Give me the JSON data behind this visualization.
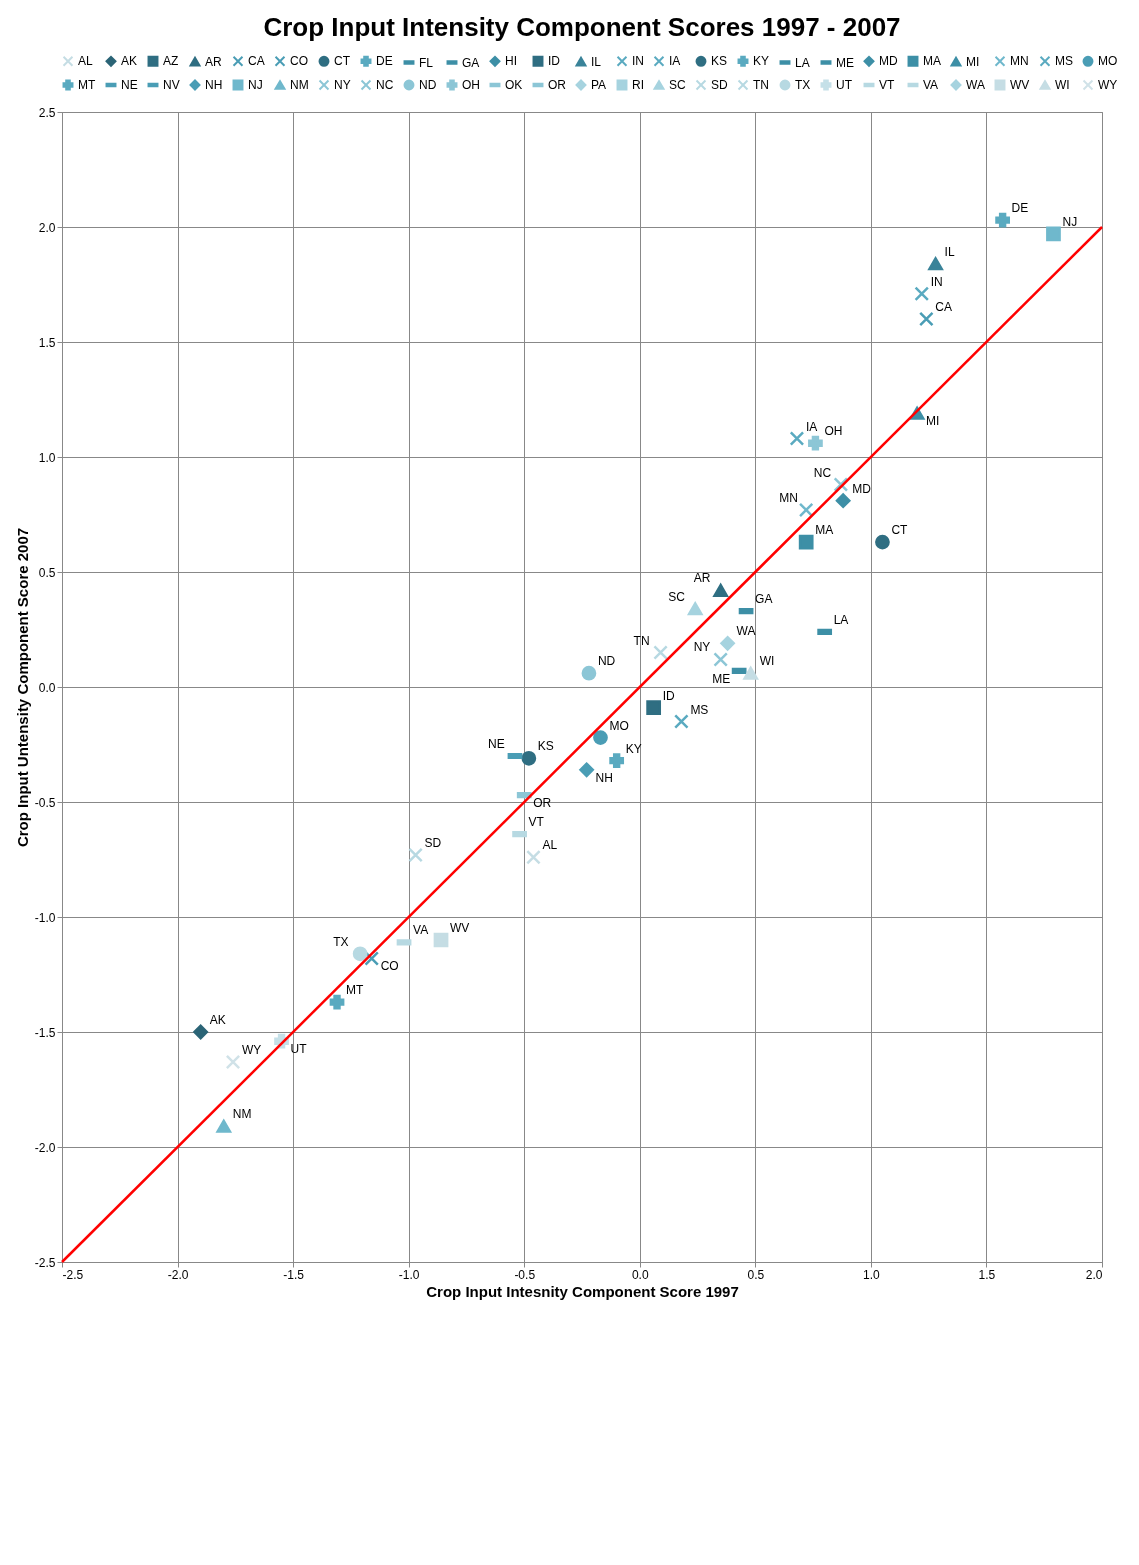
{
  "chart_data": {
    "type": "scatter",
    "title": "Crop Input Intensity Component Scores 1997 - 2007",
    "xlabel": "Crop Input Intesnity Component Score 1997",
    "ylabel": "Crop Input Untensity Component Score 2007",
    "xlim": [
      -2.5,
      2.0
    ],
    "xticks": [
      -2.5,
      {
        "value": -2,
        "label": "-2.0"
      },
      -1.5,
      {
        "value": -1,
        "label": "-1.0"
      },
      -0.5,
      {
        "value": 0,
        "label": "0.0"
      },
      0.5,
      {
        "value": 1,
        "label": "1.0"
      },
      1.5,
      {
        "value": 2,
        "label": "2.0"
      }
    ],
    "ylim": [
      -2.5,
      2.5
    ],
    "yticks": [
      -2.5,
      {
        "value": -2,
        "label": "-2.0"
      },
      -1.5,
      {
        "value": -1,
        "label": "-1.0"
      },
      -0.5,
      {
        "value": 0,
        "label": "0.0"
      },
      0.5,
      {
        "value": 1,
        "label": "1.0"
      },
      1.5,
      {
        "value": 2,
        "label": "2.0"
      },
      2.5
    ],
    "grid": true,
    "legend": "top",
    "series": [
      {
        "name": "AL",
        "color": "#c5dde4",
        "marker": "cross",
        "x": [
          -0.46
        ],
        "values": [
          -0.74
        ]
      },
      {
        "name": "AK",
        "color": "#2b6476",
        "marker": "diamond",
        "x": [
          -1.9
        ],
        "values": [
          -1.5
        ]
      },
      {
        "name": "AZ",
        "color": "#2f6e82",
        "marker": "square",
        "x": [
          null
        ],
        "values": [
          null
        ]
      },
      {
        "name": "AR",
        "color": "#2f6e82",
        "marker": "triangle",
        "x": [
          0.35
        ],
        "values": [
          0.42
        ]
      },
      {
        "name": "CA",
        "color": "#4a9db5",
        "marker": "cross",
        "x": [
          1.24
        ],
        "values": [
          1.6
        ]
      },
      {
        "name": "CO",
        "color": "#4a9db5",
        "marker": "cross",
        "x": [
          -1.16
        ],
        "values": [
          -1.18
        ]
      },
      {
        "name": "CT",
        "color": "#2f6e82",
        "marker": "circle",
        "x": [
          1.05
        ],
        "values": [
          0.63
        ]
      },
      {
        "name": "DE",
        "color": "#5aaac0",
        "marker": "plus",
        "x": [
          1.57
        ],
        "values": [
          2.03
        ]
      },
      {
        "name": "FL",
        "color": "#3d8fa6",
        "x": [
          null
        ],
        "values": [
          null
        ]
      },
      {
        "name": "GA",
        "color": "#3d8fa6",
        "x": [
          0.46
        ],
        "values": [
          0.33
        ]
      },
      {
        "name": "HI",
        "color": "#3d8fa6",
        "marker": "diamond",
        "x": [
          null
        ],
        "values": [
          null
        ]
      },
      {
        "name": "ID",
        "color": "#2f6e82",
        "marker": "square",
        "x": [
          0.06
        ],
        "values": [
          -0.09
        ]
      },
      {
        "name": "IL",
        "color": "#3a8399",
        "marker": "triangle",
        "x": [
          1.28
        ],
        "values": [
          1.84
        ]
      },
      {
        "name": "IN",
        "color": "#5aaac0",
        "marker": "cross",
        "x": [
          1.22
        ],
        "values": [
          1.71
        ]
      },
      {
        "name": "IA",
        "color": "#5aaac0",
        "marker": "cross",
        "x": [
          0.68
        ],
        "values": [
          1.08
        ]
      },
      {
        "name": "KS",
        "color": "#2f6e82",
        "marker": "circle",
        "x": [
          -0.48
        ],
        "values": [
          -0.31
        ]
      },
      {
        "name": "KY",
        "color": "#5aaac0",
        "marker": "plus",
        "x": [
          -0.1
        ],
        "values": [
          -0.32
        ]
      },
      {
        "name": "LA",
        "color": "#3d8fa6",
        "x": [
          0.8
        ],
        "values": [
          0.24
        ]
      },
      {
        "name": "ME",
        "color": "#3d8fa6",
        "x": [
          0.43
        ],
        "values": [
          0.07
        ]
      },
      {
        "name": "MD",
        "color": "#3d8fa6",
        "marker": "diamond",
        "x": [
          0.88
        ],
        "values": [
          0.81
        ]
      },
      {
        "name": "MA",
        "color": "#3d8fa6",
        "marker": "square",
        "x": [
          0.72
        ],
        "values": [
          0.63
        ]
      },
      {
        "name": "MI",
        "color": "#3d8fa6",
        "marker": "triangle",
        "x": [
          1.2
        ],
        "values": [
          1.19
        ]
      },
      {
        "name": "MN",
        "color": "#6fb8cc",
        "marker": "cross",
        "x": [
          0.72
        ],
        "values": [
          0.77
        ]
      },
      {
        "name": "MS",
        "color": "#5aaac0",
        "marker": "cross",
        "x": [
          0.18
        ],
        "values": [
          -0.15
        ]
      },
      {
        "name": "MO",
        "color": "#4a9db5",
        "marker": "circle",
        "x": [
          -0.17
        ],
        "values": [
          -0.22
        ]
      },
      {
        "name": "MT",
        "color": "#5aaac0",
        "marker": "plus",
        "x": [
          -1.31
        ],
        "values": [
          -1.37
        ]
      },
      {
        "name": "NE",
        "color": "#4a9db5",
        "x": [
          -0.54
        ],
        "values": [
          -0.3
        ]
      },
      {
        "name": "NV",
        "color": "#4a9db5",
        "x": [
          null
        ],
        "values": [
          null
        ]
      },
      {
        "name": "NH",
        "color": "#4a9db5",
        "marker": "diamond",
        "x": [
          -0.23
        ],
        "values": [
          -0.36
        ]
      },
      {
        "name": "NJ",
        "color": "#6fb8cc",
        "marker": "square",
        "x": [
          1.79
        ],
        "values": [
          1.97
        ]
      },
      {
        "name": "NM",
        "color": "#6fb8cc",
        "marker": "triangle",
        "x": [
          -1.8
        ],
        "values": [
          -1.91
        ]
      },
      {
        "name": "NY",
        "color": "#8cc6d6",
        "marker": "cross",
        "x": [
          0.35
        ],
        "values": [
          0.12
        ]
      },
      {
        "name": "NC",
        "color": "#8cc6d6",
        "marker": "cross",
        "x": [
          0.87
        ],
        "values": [
          0.88
        ]
      },
      {
        "name": "ND",
        "color": "#8cc6d6",
        "marker": "circle",
        "x": [
          -0.22
        ],
        "values": [
          0.06
        ]
      },
      {
        "name": "OH",
        "color": "#8cc6d6",
        "marker": "plus",
        "x": [
          0.76
        ],
        "values": [
          1.06
        ]
      },
      {
        "name": "OK",
        "color": "#8cc6d6",
        "x": [
          null
        ],
        "values": [
          null
        ]
      },
      {
        "name": "OR",
        "color": "#8cc6d6",
        "x": [
          -0.5
        ],
        "values": [
          -0.47
        ]
      },
      {
        "name": "PA",
        "color": "#a6d3df",
        "marker": "diamond",
        "x": [
          null
        ],
        "values": [
          null
        ]
      },
      {
        "name": "RI",
        "color": "#a6d3df",
        "marker": "square",
        "x": [
          null
        ],
        "values": [
          null
        ]
      },
      {
        "name": "SC",
        "color": "#a6d3df",
        "marker": "triangle",
        "x": [
          0.24
        ],
        "values": [
          0.34
        ]
      },
      {
        "name": "SD",
        "color": "#b7d9e2",
        "marker": "cross",
        "x": [
          -0.97
        ],
        "values": [
          -0.73
        ]
      },
      {
        "name": "TN",
        "color": "#b7d9e2",
        "marker": "cross",
        "x": [
          0.09
        ],
        "values": [
          0.15
        ]
      },
      {
        "name": "TX",
        "color": "#b7d9e2",
        "marker": "circle",
        "x": [
          -1.21
        ],
        "values": [
          -1.16
        ]
      },
      {
        "name": "UT",
        "color": "#c5e0e8",
        "marker": "plus",
        "x": [
          -1.55
        ],
        "values": [
          -1.54
        ]
      },
      {
        "name": "VT",
        "color": "#b7d9e2",
        "x": [
          -0.52
        ],
        "values": [
          -0.64
        ]
      },
      {
        "name": "VA",
        "color": "#b7d9e2",
        "x": [
          -1.02
        ],
        "values": [
          -1.11
        ]
      },
      {
        "name": "WA",
        "color": "#a6d3df",
        "marker": "diamond",
        "x": [
          0.38
        ],
        "values": [
          0.19
        ]
      },
      {
        "name": "WV",
        "color": "#c5dde4",
        "marker": "square",
        "x": [
          -0.86
        ],
        "values": [
          -1.1
        ]
      },
      {
        "name": "WI",
        "color": "#c5dde4",
        "marker": "triangle",
        "x": [
          0.48
        ],
        "values": [
          0.06
        ]
      },
      {
        "name": "WY",
        "color": "#d0e2e8",
        "marker": "cross",
        "x": [
          -1.76
        ],
        "values": [
          -1.63
        ]
      },
      {
        "type": "line",
        "color": "#ff0000",
        "x": [
          -2.5,
          2.0
        ],
        "values": [
          -2.5,
          2.0
        ]
      }
    ]
  }
}
